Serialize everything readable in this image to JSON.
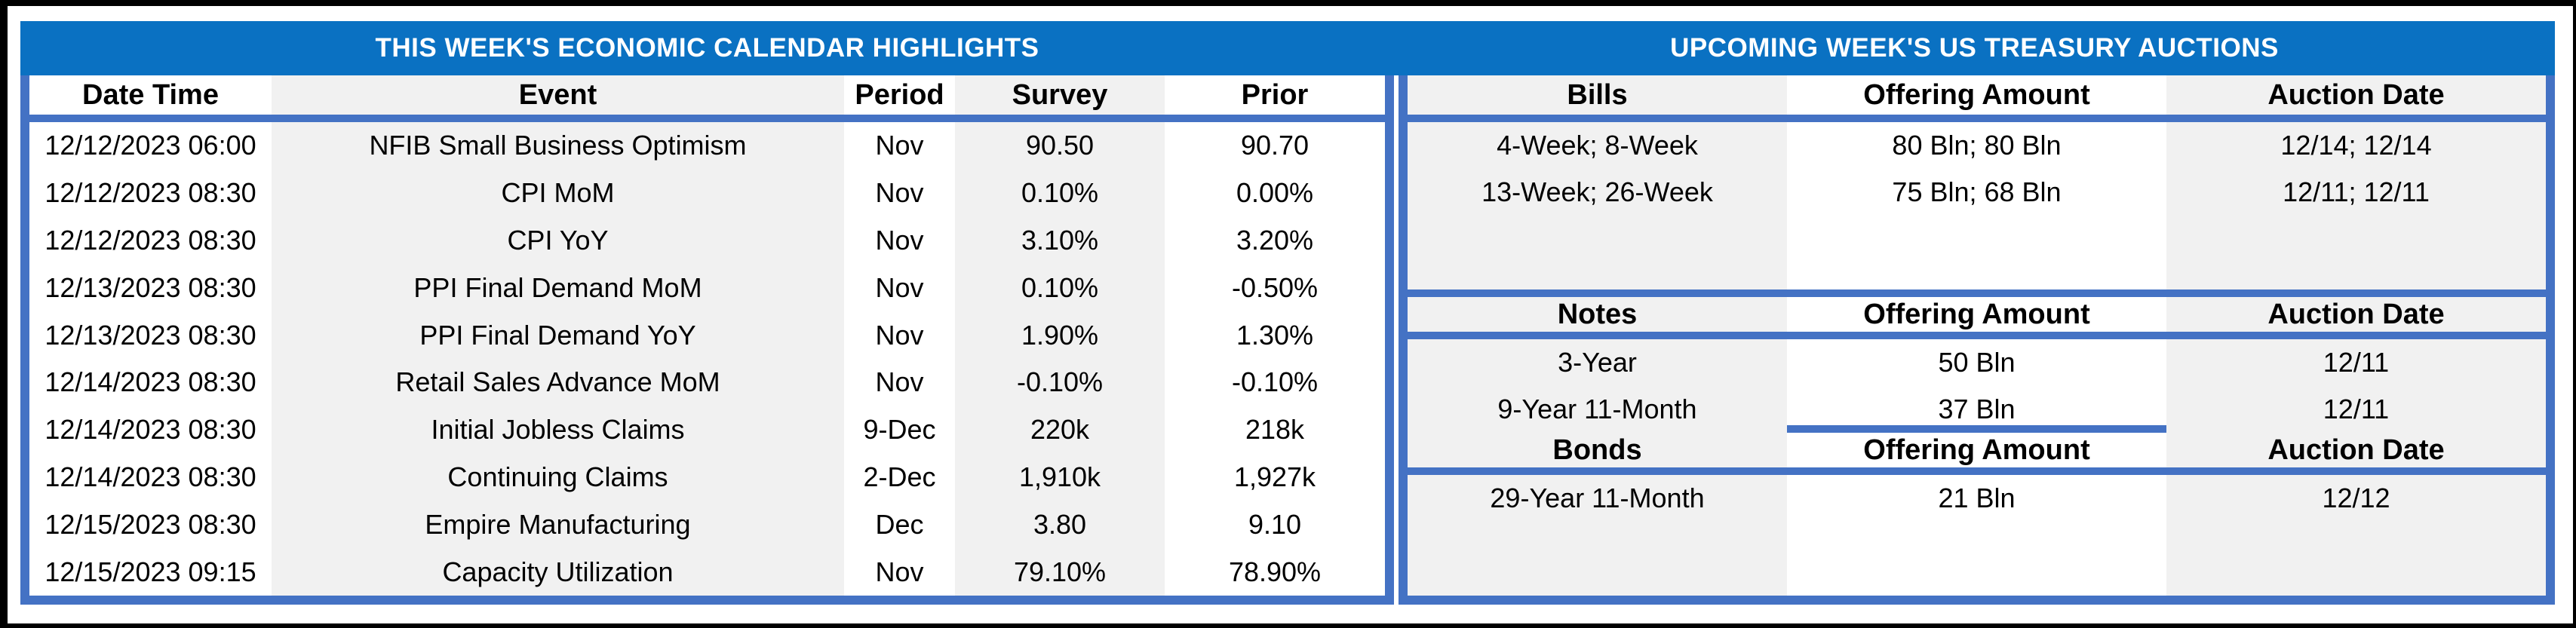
{
  "colors": {
    "title_bar_blue": "#0A71C2",
    "border_blue": "#4472C4",
    "band_gray": "#F1F1F1",
    "frame_black": "#000000",
    "title_text": "#FFFFFF"
  },
  "left_panel": {
    "title": "THIS WEEK'S ECONOMIC CALENDAR HIGHLIGHTS",
    "columns": [
      "Date Time",
      "Event",
      "Period",
      "Survey",
      "Prior"
    ],
    "rows": [
      {
        "date_time": "12/12/2023 06:00",
        "event": "NFIB Small Business Optimism",
        "period": "Nov",
        "survey": "90.50",
        "prior": "90.70"
      },
      {
        "date_time": "12/12/2023 08:30",
        "event": "CPI MoM",
        "period": "Nov",
        "survey": "0.10%",
        "prior": "0.00%"
      },
      {
        "date_time": "12/12/2023 08:30",
        "event": "CPI YoY",
        "period": "Nov",
        "survey": "3.10%",
        "prior": "3.20%"
      },
      {
        "date_time": "12/13/2023 08:30",
        "event": "PPI Final Demand MoM",
        "period": "Nov",
        "survey": "0.10%",
        "prior": "-0.50%"
      },
      {
        "date_time": "12/13/2023 08:30",
        "event": "PPI Final Demand YoY",
        "period": "Nov",
        "survey": "1.90%",
        "prior": "1.30%"
      },
      {
        "date_time": "12/14/2023 08:30",
        "event": "Retail Sales Advance MoM",
        "period": "Nov",
        "survey": "-0.10%",
        "prior": "-0.10%"
      },
      {
        "date_time": "12/14/2023 08:30",
        "event": "Initial Jobless Claims",
        "period": "9-Dec",
        "survey": "220k",
        "prior": "218k"
      },
      {
        "date_time": "12/14/2023 08:30",
        "event": "Continuing Claims",
        "period": "2-Dec",
        "survey": "1,910k",
        "prior": "1,927k"
      },
      {
        "date_time": "12/15/2023 08:30",
        "event": "Empire Manufacturing",
        "period": "Dec",
        "survey": "3.80",
        "prior": "9.10"
      },
      {
        "date_time": "12/15/2023 09:15",
        "event": "Capacity Utilization",
        "period": "Nov",
        "survey": "79.10%",
        "prior": "78.90%"
      }
    ]
  },
  "right_panel": {
    "title": "UPCOMING WEEK'S US TREASURY AUCTIONS",
    "bills": {
      "header": [
        "Bills",
        "Offering Amount",
        "Auction Date"
      ],
      "rows": [
        {
          "security": "4-Week; 8-Week",
          "offering_amount": "80 Bln; 80 Bln",
          "auction_date": "12/14; 12/14"
        },
        {
          "security": "13-Week; 26-Week",
          "offering_amount": "75 Bln; 68 Bln",
          "auction_date": "12/11; 12/11"
        }
      ]
    },
    "notes": {
      "header": [
        "Notes",
        "Offering Amount",
        "Auction Date"
      ],
      "rows": [
        {
          "security": "3-Year",
          "offering_amount": "50 Bln",
          "auction_date": "12/11"
        },
        {
          "security": "9-Year 11-Month",
          "offering_amount": "37 Bln",
          "auction_date": "12/11"
        }
      ]
    },
    "bonds": {
      "header": [
        "Bonds",
        "Offering Amount",
        "Auction Date"
      ],
      "rows": [
        {
          "security": "29-Year 11-Month",
          "offering_amount": "21 Bln",
          "auction_date": "12/12"
        }
      ]
    }
  }
}
